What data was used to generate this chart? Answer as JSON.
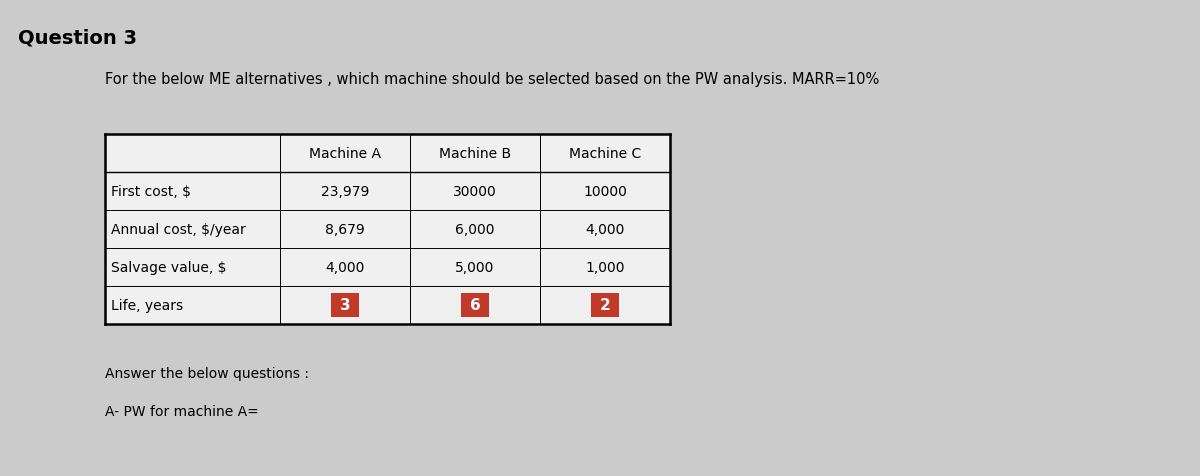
{
  "title": "Question 3",
  "subtitle": "For the below ME alternatives , which machine should be selected based on the PW analysis. MARR=10%",
  "row_labels": [
    "",
    "First cost, $",
    "Annual cost, $/year",
    "Salvage value, $",
    "Life, years"
  ],
  "col_labels": [
    "Machine A",
    "Machine B",
    "Machine C"
  ],
  "table_data": [
    [
      "23,979",
      "30000",
      "10000"
    ],
    [
      "8,679",
      "6,000",
      "4,000"
    ],
    [
      "4,000",
      "5,000",
      "1,000"
    ],
    [
      "3",
      "6",
      "2"
    ]
  ],
  "life_color": "#c0392b",
  "footer_lines": [
    "Answer the below questions :",
    "A- PW for machine A="
  ],
  "bg_color": "#cbcbcb",
  "table_bg": "#f0f0f0",
  "font_size_title": 14,
  "font_size_subtitle": 10.5,
  "font_size_table": 10,
  "font_size_footer": 10
}
